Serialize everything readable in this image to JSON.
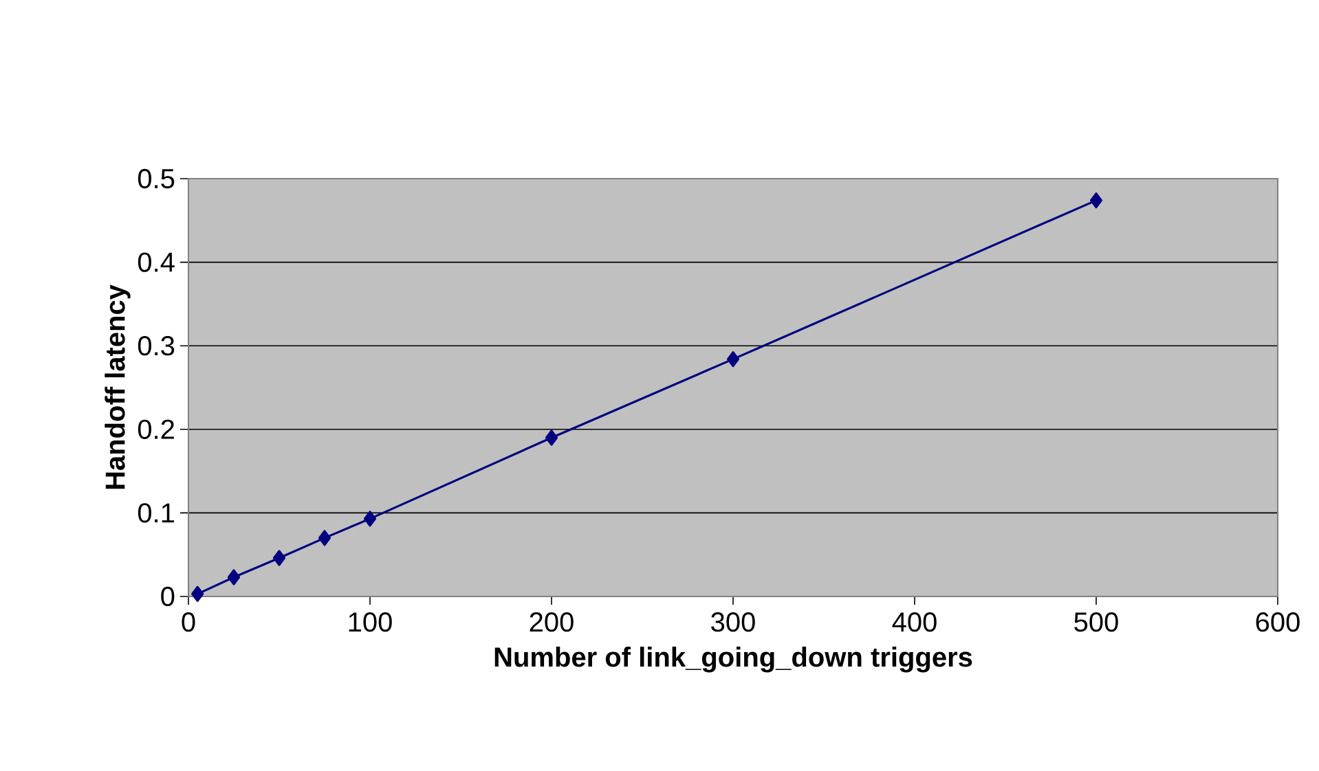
{
  "chart_data": {
    "type": "line",
    "xlabel": "Number of link_going_down triggers",
    "ylabel": "Handoff latency",
    "x": [
      5,
      25,
      50,
      75,
      100,
      200,
      300,
      500
    ],
    "series": [
      {
        "color": "#000080",
        "values": [
          0.003,
          0.023,
          0.046,
          0.07,
          0.093,
          0.19,
          0.284,
          0.474
        ]
      }
    ],
    "xlim": [
      0,
      600
    ],
    "xticks": [
      0,
      100,
      200,
      300,
      400,
      500,
      600
    ],
    "ylim": [
      0,
      0.5
    ],
    "yticks": [
      0,
      0.1,
      0.2,
      0.3,
      0.4,
      0.5
    ],
    "grid": "y",
    "marker": "diamond",
    "line_style": "solid"
  }
}
